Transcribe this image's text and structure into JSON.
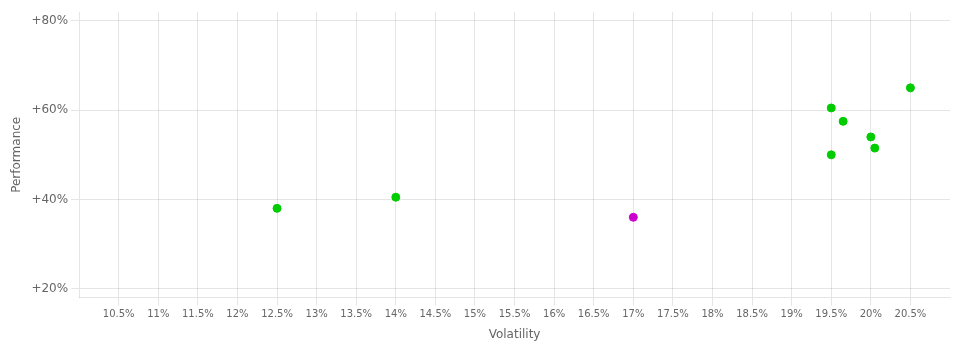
{
  "chart_data": {
    "type": "scatter",
    "xlabel": "Volatility",
    "ylabel": "Performance",
    "x": [
      12.5,
      14.0,
      17.0,
      19.5,
      19.5,
      19.65,
      20.0,
      20.05,
      20.5
    ],
    "values": [
      38.0,
      40.5,
      36.0,
      50.0,
      60.5,
      57.5,
      54.0,
      51.5,
      65.0
    ],
    "colors": [
      "#00cc00",
      "#00cc00",
      "#cc00cc",
      "#00cc00",
      "#00cc00",
      "#00cc00",
      "#00cc00",
      "#00cc00",
      "#00cc00"
    ],
    "xlim": [
      10.0,
      21.0
    ],
    "ylim": [
      18.0,
      82.0
    ],
    "xticks": [
      {
        "value": 10.5,
        "label": "10.5%"
      },
      {
        "value": 11.0,
        "label": "11%"
      },
      {
        "value": 11.5,
        "label": "11.5%"
      },
      {
        "value": 12.0,
        "label": "12%"
      },
      {
        "value": 12.5,
        "label": "12.5%"
      },
      {
        "value": 13.0,
        "label": "13%"
      },
      {
        "value": 13.5,
        "label": "13.5%"
      },
      {
        "value": 14.0,
        "label": "14%"
      },
      {
        "value": 14.5,
        "label": "14.5%"
      },
      {
        "value": 15.0,
        "label": "15%"
      },
      {
        "value": 15.5,
        "label": "15.5%"
      },
      {
        "value": 16.0,
        "label": "16%"
      },
      {
        "value": 16.5,
        "label": "16.5%"
      },
      {
        "value": 17.0,
        "label": "17%"
      },
      {
        "value": 17.5,
        "label": "17.5%"
      },
      {
        "value": 18.0,
        "label": "18%"
      },
      {
        "value": 18.5,
        "label": "18.5%"
      },
      {
        "value": 19.0,
        "label": "19%"
      },
      {
        "value": 19.5,
        "label": "19.5%"
      },
      {
        "value": 20.0,
        "label": "20%"
      },
      {
        "value": 20.5,
        "label": "20.5%"
      }
    ],
    "yticks": [
      {
        "value": 20,
        "label": "+20%"
      },
      {
        "value": 40,
        "label": "+40%"
      },
      {
        "value": 60,
        "label": "+60%"
      },
      {
        "value": 80,
        "label": "+80%"
      }
    ],
    "grid": true
  }
}
